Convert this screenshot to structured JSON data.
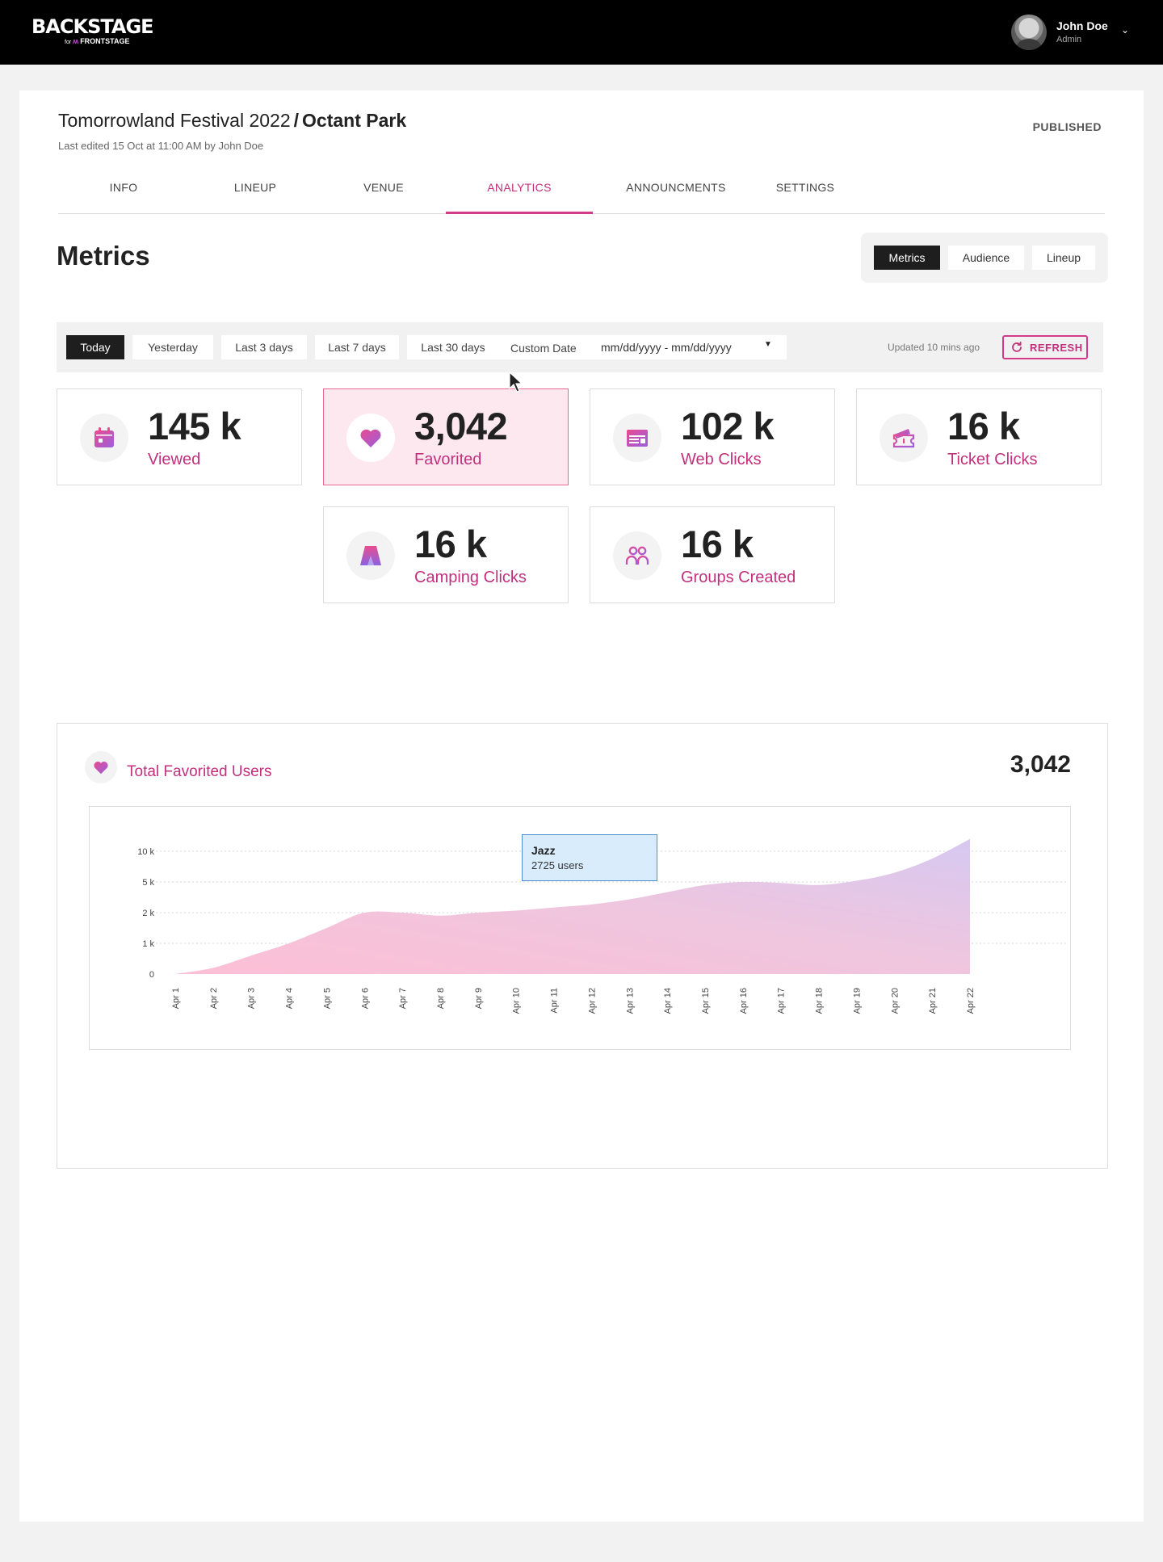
{
  "header": {
    "logo_main": "BACKSTAGE",
    "logo_for": "for",
    "logo_brand": "FRONTSTAGE",
    "user_name": "John Doe",
    "user_role": "Admin"
  },
  "page": {
    "event_title": "Tomorrowland Festival 2022",
    "separator": "/",
    "venue_title": "Octant Park",
    "last_edited": "Last edited 15 Oct at 11:00 AM by John Doe",
    "status": "PUBLISHED"
  },
  "tabs": [
    {
      "label": "INFO"
    },
    {
      "label": "LINEUP"
    },
    {
      "label": "VENUE"
    },
    {
      "label": "ANALYTICS",
      "active": true
    },
    {
      "label": "ANNOUNCMENTS"
    },
    {
      "label": "SETTINGS"
    }
  ],
  "metrics": {
    "heading": "Metrics",
    "segments": [
      {
        "label": "Metrics",
        "active": true
      },
      {
        "label": "Audience"
      },
      {
        "label": "Lineup"
      }
    ]
  },
  "filters": {
    "ranges": [
      {
        "label": "Today",
        "active": true
      },
      {
        "label": "Yesterday"
      },
      {
        "label": "Last 3 days"
      },
      {
        "label": "Last 7 days"
      },
      {
        "label": "Last 30 days"
      }
    ],
    "custom_label": "Custom Date",
    "custom_value": "mm/dd/yyyy - mm/dd/yyyy",
    "updated": "Updated 10 mins ago",
    "refresh": "REFRESH"
  },
  "stats": [
    {
      "value": "145 k",
      "label": "Viewed",
      "icon": "calendar-icon"
    },
    {
      "value": "3,042",
      "label": "Favorited",
      "icon": "heart-icon",
      "highlighted": true
    },
    {
      "value": "102 k",
      "label": "Web Clicks",
      "icon": "browser-window-icon"
    },
    {
      "value": "16 k",
      "label": "Ticket Clicks",
      "icon": "ticket-icon"
    },
    {
      "value": "16 k",
      "label": "Camping Clicks",
      "icon": "tent-icon"
    },
    {
      "value": "16 k",
      "label": "Groups Created",
      "icon": "group-icon"
    }
  ],
  "favorited_chart": {
    "title": "Total Favorited Users",
    "total": "3,042",
    "tooltip_title": "Jazz",
    "tooltip_text": "2725 users"
  },
  "colors": {
    "accent": "#c2307d",
    "accent_border": "#d33b8a",
    "highlight_bg": "#fde8ef",
    "area_pink": "#fdbfd5",
    "area_lavender": "#d6c8f1"
  },
  "chart_data": {
    "type": "area",
    "title": "Total Favorited Users",
    "xlabel": "",
    "ylabel": "",
    "y_tick_labels": [
      "0",
      "1 k",
      "2 k",
      "5 k",
      "10 k"
    ],
    "y_tick_values": [
      0,
      1000,
      2000,
      5000,
      10000
    ],
    "y_scale": "non-linear (evenly spaced ticks 0, 1k, 2k, 5k, 10k)",
    "categories": [
      "Apr 1",
      "Apr 2",
      "Apr 3",
      "Apr 4",
      "Apr 5",
      "Apr 6",
      "Apr 7",
      "Apr 8",
      "Apr 9",
      "Apr 10",
      "Apr 11",
      "Apr 12",
      "Apr 13",
      "Apr 14",
      "Apr 15",
      "Apr 16",
      "Apr 17",
      "Apr 18",
      "Apr 19",
      "Apr 20",
      "Apr 21",
      "Apr 22"
    ],
    "values": [
      0,
      200,
      600,
      1000,
      1500,
      2000,
      2000,
      1900,
      2000,
      2200,
      2500,
      2800,
      3300,
      4000,
      4700,
      5000,
      4900,
      4700,
      5200,
      6500,
      8800,
      12000
    ],
    "grid": true,
    "legend": "none",
    "annotations": [
      {
        "label": "Jazz",
        "text": "2725 users"
      }
    ]
  }
}
